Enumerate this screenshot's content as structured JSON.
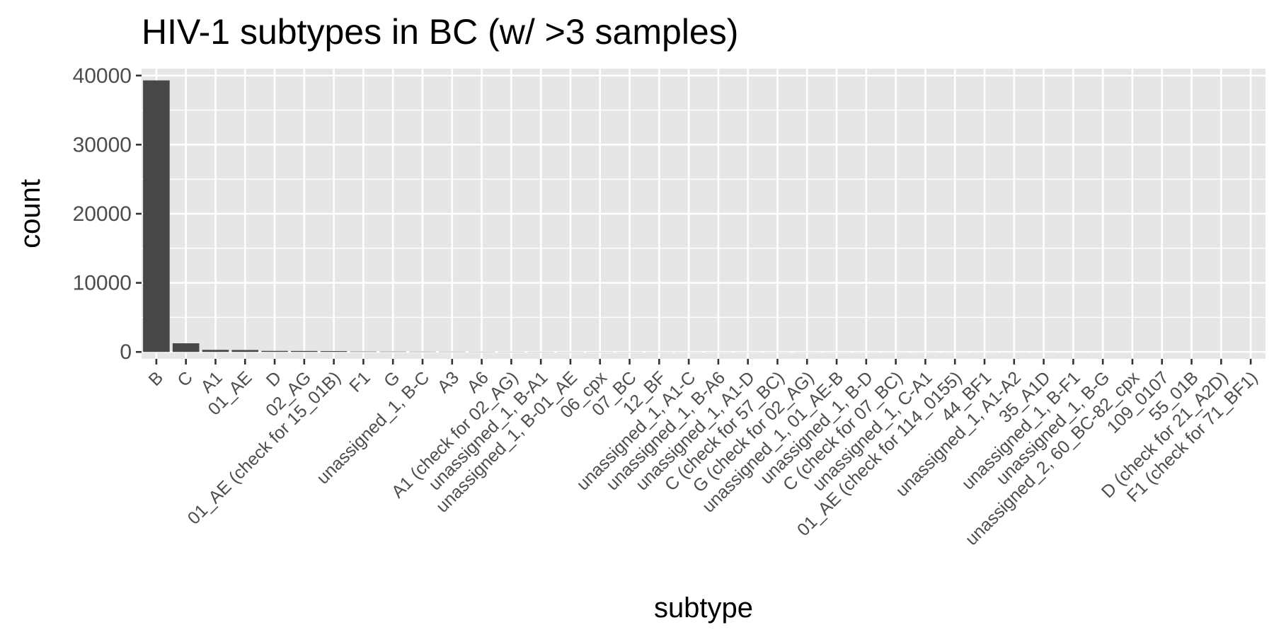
{
  "chart_data": {
    "type": "bar",
    "title": "HIV-1 subtypes in BC (w/ >3 samples)",
    "xlabel": "subtype",
    "ylabel": "count",
    "ylim": [
      -1000,
      41000
    ],
    "yticks": [
      0,
      10000,
      20000,
      30000,
      40000
    ],
    "ytick_labels": [
      "0",
      "10000",
      "20000",
      "30000",
      "40000"
    ],
    "grid": true,
    "legend": "none",
    "colors": {
      "bar": "#474747",
      "panel": "#e6e6e6",
      "grid": "#ffffff",
      "tick": "#333333"
    },
    "categories": [
      "B",
      "C",
      "A1",
      "01_AE",
      "D",
      "02_AG",
      "01_AE (check for 15_01B)",
      "F1",
      "G",
      "unassigned_1, B-C",
      "A3",
      "A6",
      "A1 (check for 02_AG)",
      "unassigned_1, B-A1",
      "unassigned_1, B-01_AE",
      "06_cpx",
      "07_BC",
      "12_BF",
      "unassigned_1, A1-C",
      "unassigned_1, B-A6",
      "unassigned_1, A1-D",
      "C (check for 57_BC)",
      "G (check for 02_AG)",
      "unassigned_1, 01_AE-B",
      "unassigned_1, B-D",
      "C (check for 07_BC)",
      "unassigned_1, C-A1",
      "01_AE (check for 114_0155)",
      "44_BF1",
      "unassigned_1, A1-A2",
      "35_A1D",
      "unassigned_1, B-F1",
      "unassigned_1, B-G",
      "unassigned_2, 60_BC-82_cpx",
      "109_0107",
      "55_01B",
      "D (check for 21_A2D)",
      "F1 (check for 71_BF1)"
    ],
    "values": [
      39300,
      1250,
      300,
      280,
      150,
      140,
      120,
      60,
      55,
      45,
      40,
      35,
      30,
      28,
      25,
      22,
      20,
      18,
      16,
      15,
      14,
      13,
      12,
      11,
      10,
      9,
      9,
      8,
      8,
      7,
      7,
      6,
      6,
      5,
      5,
      4,
      4,
      4
    ]
  }
}
